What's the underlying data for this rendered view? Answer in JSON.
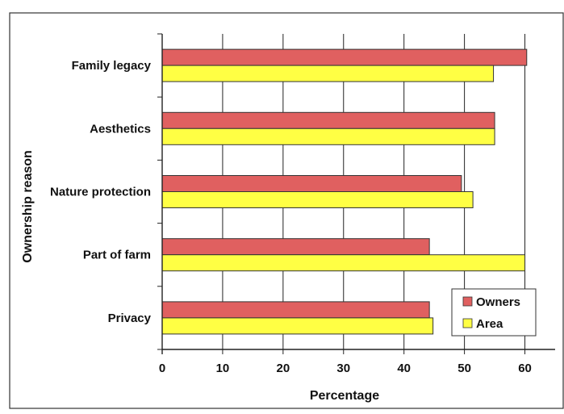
{
  "chart_data": {
    "type": "bar",
    "orientation": "horizontal",
    "categories": [
      "Family legacy",
      "Aesthetics",
      "Nature protection",
      "Part of farm",
      "Privacy"
    ],
    "series": [
      {
        "name": "Owners",
        "values": [
          60.3,
          55.0,
          49.5,
          44.2,
          44.2
        ],
        "color": "#e06060"
      },
      {
        "name": "Area",
        "values": [
          54.8,
          55.0,
          51.4,
          60.0,
          44.8
        ],
        "color": "#ffff44"
      }
    ],
    "xlabel": "Percentage",
    "ylabel": "Ownership reason",
    "xlim": [
      0,
      65
    ],
    "xticks": [
      0,
      10,
      20,
      30,
      40,
      50,
      60
    ],
    "grid": "vertical",
    "legend_position": "bottom-right"
  }
}
